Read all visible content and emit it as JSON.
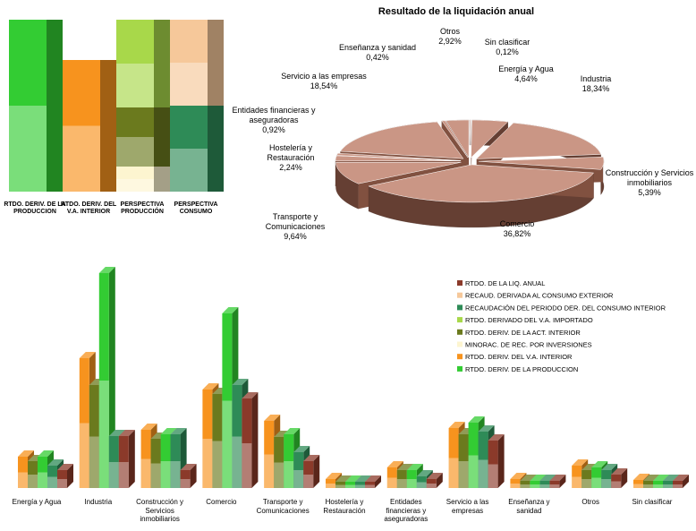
{
  "chart_data": [
    {
      "type": "stacked-bar",
      "categories": [
        "RTDO. DERIV. DE LA PRODUCCION",
        "RTDO. DERIV. DEL V.A. INTERIOR",
        "PERSPECTIVA PRODUCCIÓN",
        "PERSPECTIVA CONSUMO"
      ],
      "series": [
        {
          "color": "#33cc33",
          "values": [
            192,
            null,
            null,
            null
          ]
        },
        {
          "color": "#f7931e",
          "values": [
            null,
            147,
            null,
            null
          ]
        },
        {
          "color": "#fdf5d0",
          "values": [
            null,
            null,
            28,
            null
          ]
        },
        {
          "color": "#6b7a1e",
          "values": [
            null,
            null,
            66,
            null
          ]
        },
        {
          "color": "#a8d84a",
          "values": [
            null,
            null,
            98,
            null
          ]
        },
        {
          "color": "#2e8b57",
          "values": [
            null,
            null,
            null,
            96
          ]
        },
        {
          "color": "#f6c89a",
          "values": [
            null,
            null,
            null,
            96
          ]
        }
      ]
    },
    {
      "type": "pie",
      "title": "Resultado de la liquidación anual",
      "color": "#b8735c",
      "categories": [
        "Sin clasificar",
        "Energía y Agua",
        "Industria",
        "Construcción y Servicios inmobiliarios",
        "Comercio",
        "Transporte y Comunicaciones",
        "Hostelería y Restauración",
        "Entidades financieras y aseguradoras",
        "Servicio a las empresas",
        "Enseñanza y sanidad",
        "Otros"
      ],
      "values": [
        0.12,
        4.64,
        18.34,
        5.39,
        36.82,
        9.64,
        2.24,
        0.92,
        18.54,
        0.42,
        2.92
      ],
      "value_labels": [
        "0,12%",
        "4,64%",
        "18,34%",
        "5,39%",
        "36,82%",
        "9,64%",
        "2,24%",
        "0,92%",
        "18,54%",
        "0,42%",
        "2,92%"
      ]
    },
    {
      "type": "bar",
      "categories": [
        "Energía y Agua",
        "Industria",
        "Construcción y Servicios inmobiliarios",
        "Comercio",
        "Transporte y Comunicaciones",
        "Hostelería y Restauración",
        "Entidades financieras y aseguradoras",
        "Servicio a las empresas",
        "Enseñanza y sanidad",
        "Otros",
        "Sin clasificar"
      ],
      "series": [
        {
          "name": "RTDO. DE LA LIQ. ANUAL",
          "color": "#8b3a2a",
          "values": [
            20,
            58,
            20,
            100,
            30,
            7,
            10,
            53,
            8,
            15,
            8
          ]
        },
        {
          "name": "RECAUD. DERIVADA AL CONSUMO EXTERIOR",
          "color": "#f6c89a",
          "values": [
            null,
            null,
            null,
            null,
            null,
            null,
            null,
            null,
            null,
            null,
            null
          ]
        },
        {
          "name": "RECAUDACIÓN DEL PERIODO DER. DEL CONSUMO INTERIOR",
          "color": "#2e8b57",
          "values": [
            25,
            58,
            60,
            115,
            40,
            7,
            13,
            63,
            8,
            20,
            8
          ]
        },
        {
          "name": "RTDO. DERIVADO DEL V.A. IMPORTADO",
          "color": "#a8d84a",
          "values": [
            null,
            null,
            null,
            null,
            null,
            null,
            null,
            null,
            null,
            null,
            null
          ]
        },
        {
          "name": "RTDO. DERIV. DE LA ACT. INTERIOR",
          "color": "#6b7a1e",
          "values": [
            30,
            115,
            55,
            105,
            57,
            7,
            20,
            60,
            8,
            20,
            8
          ]
        },
        {
          "name": "MINORAC. DE REC. POR INVERSIONES",
          "color": "#fdf5d0",
          "values": [
            null,
            null,
            null,
            null,
            null,
            null,
            null,
            null,
            null,
            null,
            null
          ]
        },
        {
          "name": "RTDO. DERIV. DEL V.A. INTERIOR",
          "color": "#f7931e",
          "values": [
            35,
            145,
            65,
            110,
            75,
            10,
            23,
            67,
            10,
            25,
            9
          ]
        },
        {
          "name": "RTDO. DERIV. DE LA PRODUCCION",
          "color": "#33cc33",
          "values": [
            35,
            240,
            60,
            195,
            60,
            7,
            20,
            73,
            8,
            23,
            8
          ]
        }
      ]
    }
  ]
}
